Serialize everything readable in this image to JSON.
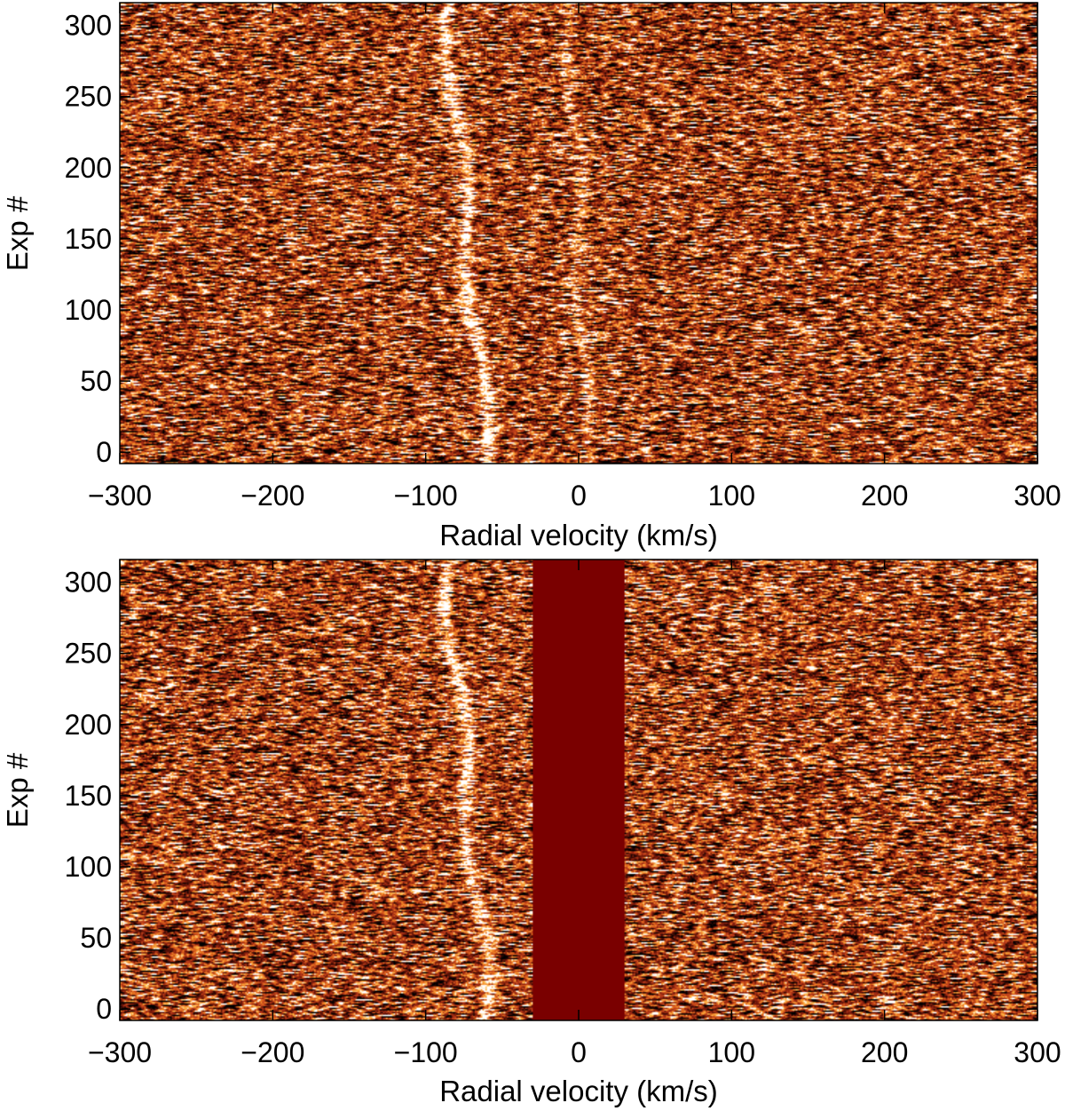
{
  "chart_data": [
    {
      "type": "heatmap",
      "panel": "top",
      "xlabel": "Radial velocity (km/s)",
      "ylabel": "Exp #",
      "xlim": [
        -300,
        300
      ],
      "ylim": [
        -8,
        316
      ],
      "x_ticks": [
        -300,
        -200,
        -100,
        0,
        100,
        200,
        300
      ],
      "x_tick_labels": [
        "−300",
        "−200",
        "−100",
        "0",
        "100",
        "200",
        "300"
      ],
      "y_ticks": [
        0,
        50,
        100,
        150,
        200,
        250,
        300
      ],
      "y_tick_labels": [
        "0",
        "50",
        "100",
        "150",
        "200",
        "250",
        "300"
      ],
      "colormap": [
        "#000000",
        "#3a0a05",
        "#7a1a0a",
        "#b8391a",
        "#e8701e",
        "#ffb545",
        "#ffffff"
      ],
      "features": [
        {
          "kind": "trace",
          "x_at_y0": -60,
          "x_at_y300": -85,
          "strength": 0.9
        },
        {
          "kind": "trace",
          "x_at_y0": 5,
          "x_at_y300": -5,
          "strength": 0.45
        }
      ],
      "masked_region": null,
      "grid": false
    },
    {
      "type": "heatmap",
      "panel": "bottom",
      "xlabel": "Radial velocity (km/s)",
      "ylabel": "Exp #",
      "xlim": [
        -300,
        300
      ],
      "ylim": [
        -8,
        316
      ],
      "x_ticks": [
        -300,
        -200,
        -100,
        0,
        100,
        200,
        300
      ],
      "x_tick_labels": [
        "−300",
        "−200",
        "−100",
        "0",
        "100",
        "200",
        "300"
      ],
      "y_ticks": [
        0,
        50,
        100,
        150,
        200,
        250,
        300
      ],
      "y_tick_labels": [
        "0",
        "50",
        "100",
        "150",
        "200",
        "250",
        "300"
      ],
      "colormap": [
        "#000000",
        "#3a0a05",
        "#7a1a0a",
        "#b8391a",
        "#e8701e",
        "#ffb545",
        "#ffffff"
      ],
      "features": [
        {
          "kind": "trace",
          "x_at_y0": -60,
          "x_at_y300": -85,
          "strength": 0.9
        }
      ],
      "masked_region": {
        "x": [
          -30,
          30
        ],
        "color": "#7a0000"
      },
      "grid": false
    }
  ]
}
